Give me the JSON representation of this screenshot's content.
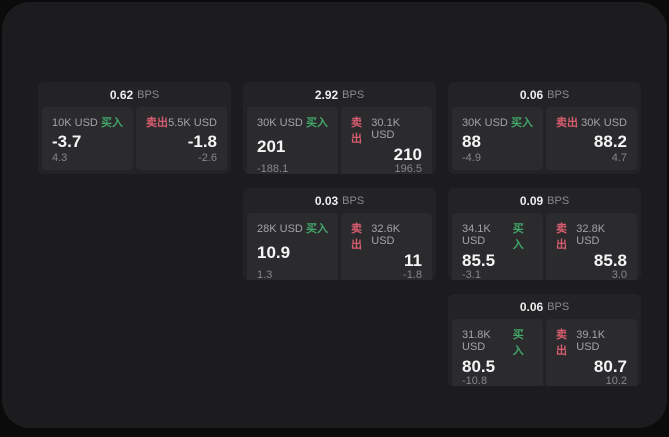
{
  "page": {
    "unit_label": "BPS",
    "buy_label": "买入",
    "sell_label": "卖出"
  },
  "colors": {
    "background": "#0b0b0c",
    "surface": "#1c1c1e",
    "card": "#232326",
    "tile": "#2b2b2e",
    "buy_green": "#43a56a",
    "sell_red": "#d65c6e",
    "value_white": "#f5f5f6",
    "muted_gray": "#a3a3a8"
  },
  "cards": [
    {
      "bps": "0.62",
      "buy": {
        "amount": "10K USD",
        "value": "-3.7",
        "sub": "4.3"
      },
      "sell": {
        "amount": "5.5K USD",
        "value": "-1.8",
        "sub": "-2.6"
      }
    },
    {
      "bps": "2.92",
      "buy": {
        "amount": "30K USD",
        "value": "201",
        "sub": "-188.1"
      },
      "sell": {
        "amount": "30.1K USD",
        "value": "210",
        "sub": "196.5"
      }
    },
    {
      "bps": "0.06",
      "buy": {
        "amount": "30K USD",
        "value": "88",
        "sub": "-4.9"
      },
      "sell": {
        "amount": "30K USD",
        "value": "88.2",
        "sub": "4.7"
      }
    },
    {
      "bps": "0.03",
      "buy": {
        "amount": "28K USD",
        "value": "10.9",
        "sub": "1.3"
      },
      "sell": {
        "amount": "32.6K USD",
        "value": "11",
        "sub": "-1.8"
      }
    },
    {
      "bps": "0.09",
      "buy": {
        "amount": "34.1K USD",
        "value": "85.5",
        "sub": "-3.1"
      },
      "sell": {
        "amount": "32.8K USD",
        "value": "85.8",
        "sub": "3.0"
      }
    },
    {
      "bps": "0.06",
      "buy": {
        "amount": "31.8K USD",
        "value": "80.5",
        "sub": "-10.8"
      },
      "sell": {
        "amount": "39.1K USD",
        "value": "80.7",
        "sub": "10.2"
      }
    }
  ]
}
